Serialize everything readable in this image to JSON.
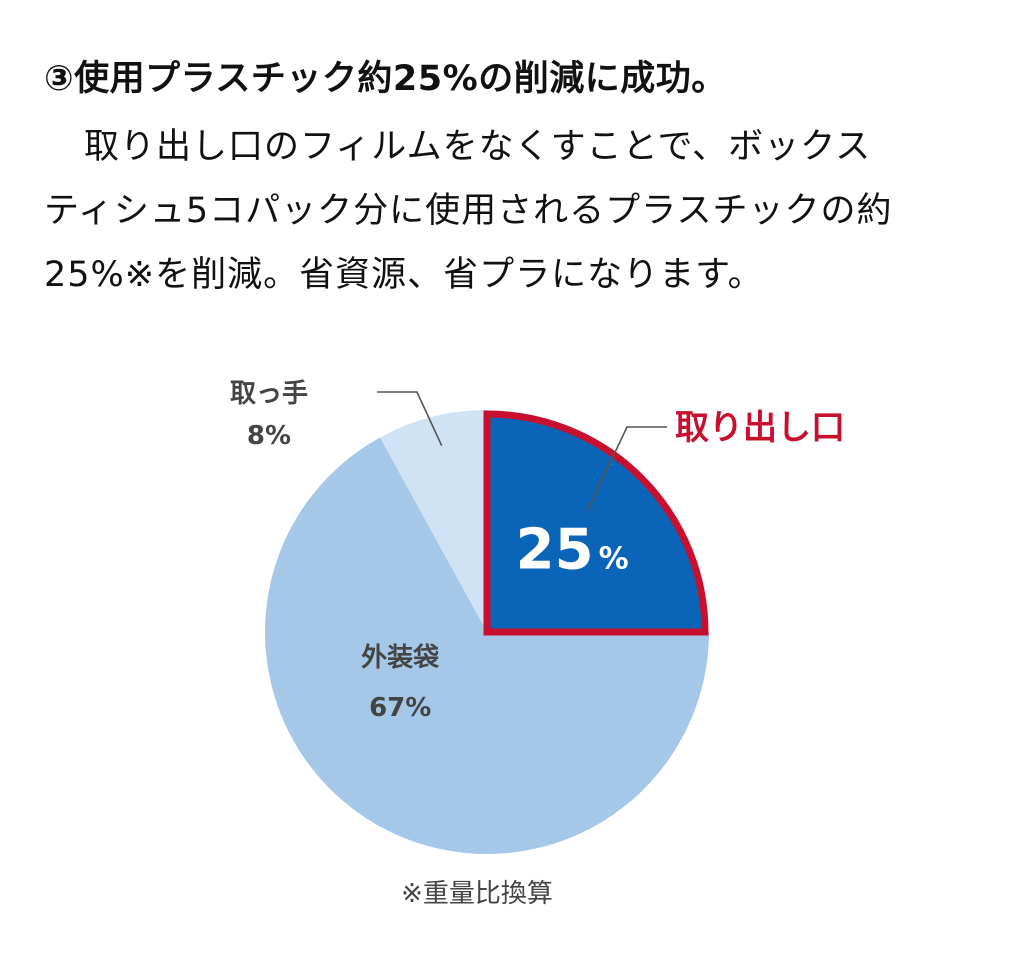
{
  "article": {
    "heading": "③使用プラスチック約25%の削減に成功。",
    "paragraph_lines": [
      "取り出し口のフィルムをなくすことで、ボックス",
      "ティシュ5コパック分に使用されるプラスチックの約",
      "25%※を削減。省資源、省プラになります。"
    ]
  },
  "chart_data": {
    "type": "pie",
    "slices": [
      {
        "label": "取り出し口",
        "value": 25,
        "value_text": "25%",
        "color": "#0a64b8",
        "border": "#c8102e",
        "highlighted": true
      },
      {
        "label": "外装袋",
        "value": 67,
        "value_text": "67%",
        "color": "#a5c8e9"
      },
      {
        "label": "取っ手",
        "value": 8,
        "value_text": "8%",
        "color": "#cfe3f5"
      }
    ],
    "note": "※重量比換算",
    "colors": {
      "highlight_label": "#c8102e",
      "value_label_on_highlight": "#ffffff",
      "label_text": "#444444",
      "leader_line": "#555555"
    }
  }
}
